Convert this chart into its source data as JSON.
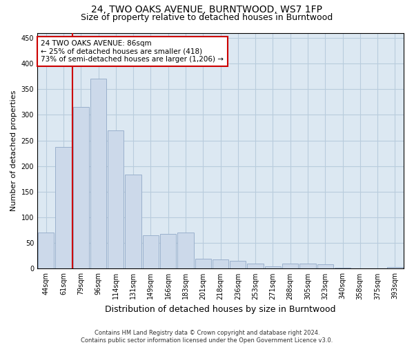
{
  "title": "24, TWO OAKS AVENUE, BURNTWOOD, WS7 1FP",
  "subtitle": "Size of property relative to detached houses in Burntwood",
  "xlabel": "Distribution of detached houses by size in Burntwood",
  "ylabel": "Number of detached properties",
  "categories": [
    "44sqm",
    "61sqm",
    "79sqm",
    "96sqm",
    "114sqm",
    "131sqm",
    "149sqm",
    "166sqm",
    "183sqm",
    "201sqm",
    "218sqm",
    "236sqm",
    "253sqm",
    "271sqm",
    "288sqm",
    "305sqm",
    "323sqm",
    "340sqm",
    "358sqm",
    "375sqm",
    "393sqm"
  ],
  "values": [
    70,
    237,
    315,
    370,
    270,
    183,
    65,
    68,
    70,
    20,
    18,
    15,
    10,
    5,
    10,
    10,
    8,
    2,
    1,
    1,
    3
  ],
  "bar_color": "#ccd9ea",
  "bar_edge_color": "#9ab0cc",
  "grid_color": "#b8ccdd",
  "background_color": "#dce8f2",
  "vline_color": "#cc0000",
  "annotation_text": "24 TWO OAKS AVENUE: 86sqm\n← 25% of detached houses are smaller (418)\n73% of semi-detached houses are larger (1,206) →",
  "annotation_box_color": "#ffffff",
  "annotation_box_edge_color": "#cc0000",
  "ylim": [
    0,
    460
  ],
  "yticks": [
    0,
    50,
    100,
    150,
    200,
    250,
    300,
    350,
    400,
    450
  ],
  "footer1": "Contains HM Land Registry data © Crown copyright and database right 2024.",
  "footer2": "Contains public sector information licensed under the Open Government Licence v3.0.",
  "title_fontsize": 10,
  "subtitle_fontsize": 9,
  "ylabel_fontsize": 8,
  "xlabel_fontsize": 9,
  "tick_fontsize": 7,
  "annotation_fontsize": 7.5,
  "footer_fontsize": 6
}
